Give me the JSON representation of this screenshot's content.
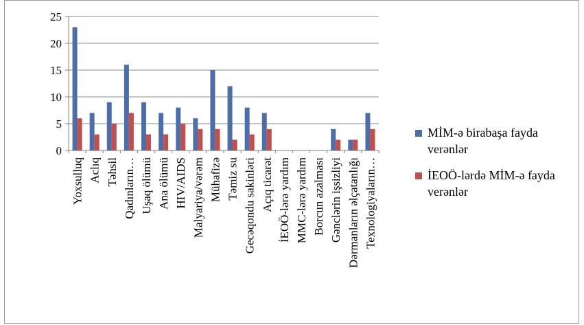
{
  "chart_data": {
    "type": "bar",
    "categories": [
      "Yoxsulluq",
      "Aclıq",
      "Təhsil",
      "Qadınların…",
      "Uşaq ölümü",
      "Ana ölümü",
      "HIV/AIDS",
      "Malyariya/vərəm",
      "Mühafizə",
      "Təmiz su",
      "Gecəqondu sakinləri",
      "Açıq ticarət",
      "İEOÖ-lərə yardım",
      "MMC-lərə yardım",
      "Borcun azalması",
      "Gənclərin işsizliyi",
      "Dərmanların əlçatanlığı",
      "Texnologiyaların…"
    ],
    "series": [
      {
        "name": "MİM-ə birabaşa fayda verənlər",
        "color": "#4f6ea8",
        "values": [
          23,
          7,
          9,
          16,
          9,
          7,
          8,
          6,
          15,
          12,
          8,
          7,
          0,
          0,
          0,
          4,
          2,
          7
        ]
      },
      {
        "name": "İEOÖ-lərdə MİM-ə fayda verənlər",
        "color": "#c0504d",
        "values": [
          6,
          3,
          5,
          7,
          3,
          3,
          5,
          4,
          4,
          2,
          3,
          4,
          0,
          0,
          0,
          2,
          2,
          4
        ]
      }
    ],
    "yticks": [
      "0",
      "5",
      "10",
      "15",
      "20",
      "25"
    ],
    "ylim": [
      0,
      25
    ],
    "grid": true,
    "legend_position": "right"
  }
}
